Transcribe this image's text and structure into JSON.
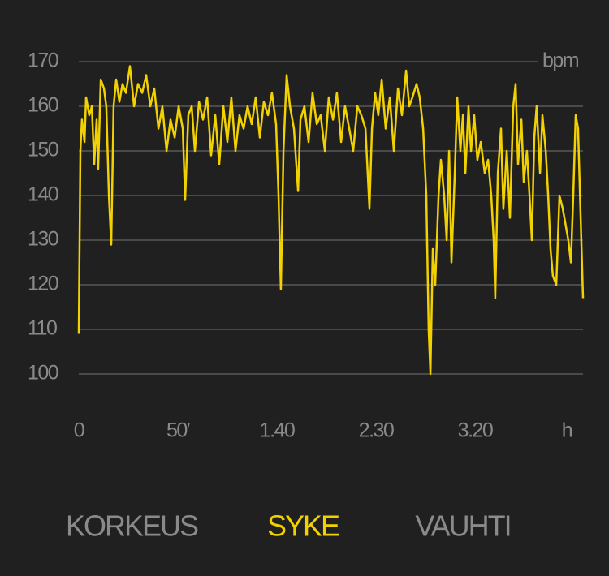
{
  "chart_data": {
    "type": "line",
    "y_unit": "bpm",
    "x_unit": "h",
    "xlim": [
      0,
      254.5
    ],
    "ylim": [
      100,
      170
    ],
    "yticks": [
      100,
      110,
      120,
      130,
      140,
      150,
      160,
      170
    ],
    "xticks": [
      0,
      {
        "value": 50,
        "label": "50′"
      },
      {
        "value": 100,
        "label": "1.40"
      },
      {
        "value": 150,
        "label": "2.30"
      },
      {
        "value": 200,
        "label": "3.20"
      }
    ],
    "grid": true,
    "series": [
      {
        "color": "#f2d100",
        "x": [
          0,
          0.8,
          1.6,
          2.9,
          3.7,
          5.3,
          6.6,
          7.8,
          9.0,
          9.8,
          11.1,
          12.7,
          13.9,
          15.2,
          16.4,
          17.6,
          18.9,
          20.5,
          22.1,
          23.8,
          25.8,
          27.9,
          29.9,
          32.0,
          34.0,
          36.1,
          38.1,
          40.2,
          42.2,
          44.3,
          46.3,
          48.4,
          50.4,
          52.5,
          53.7,
          55.3,
          57.0,
          58.6,
          60.7,
          62.7,
          64.8,
          66.8,
          68.9,
          70.9,
          73.0,
          75.0,
          77.0,
          79.1,
          81.1,
          83.2,
          85.2,
          87.3,
          89.3,
          91.4,
          93.4,
          95.5,
          97.5,
          99.6,
          100.8,
          102.0,
          103.3,
          104.9,
          106.6,
          108.6,
          110.7,
          111.9,
          113.9,
          116.0,
          118.0,
          120.1,
          122.1,
          124.2,
          126.2,
          128.3,
          130.3,
          132.4,
          134.4,
          136.5,
          138.5,
          140.6,
          142.6,
          144.7,
          146.7,
          148.0,
          149.6,
          151.2,
          152.9,
          154.9,
          157.0,
          159.0,
          161.1,
          163.1,
          165.2,
          166.8,
          168.4,
          170.5,
          172.1,
          173.8,
          175.4,
          176.6,
          177.5,
          178.7,
          179.9,
          181.6,
          182.8,
          184.4,
          185.7,
          186.9,
          188.1,
          189.8,
          191.0,
          192.6,
          193.9,
          195.1,
          196.7,
          198.0,
          199.6,
          201.2,
          202.9,
          204.9,
          206.6,
          208.2,
          209.4,
          210.2,
          211.5,
          213.1,
          214.3,
          216.0,
          217.6,
          219.3,
          220.5,
          221.7,
          223.4,
          224.6,
          226.2,
          227.5,
          228.7,
          229.9,
          231.1,
          232.8,
          234.0,
          235.7,
          236.9,
          238.1,
          239.3,
          241.0,
          242.6,
          244.3,
          245.9,
          247.1,
          248.4,
          249.6,
          250.8,
          252.0,
          253.3,
          254.5
        ],
        "values": [
          109,
          150,
          157,
          152,
          162,
          158,
          160,
          147,
          157,
          146,
          166,
          164,
          160,
          140,
          129,
          160,
          166,
          161,
          165,
          163,
          169,
          160,
          165,
          163,
          167,
          160,
          164,
          155,
          160,
          150,
          157,
          153,
          160,
          155,
          139,
          158,
          160,
          150,
          161,
          157,
          162,
          149,
          158,
          147,
          160,
          152,
          162,
          150,
          158,
          155,
          160,
          156,
          162,
          153,
          161,
          158,
          163,
          156,
          140,
          119,
          150,
          167,
          160,
          155,
          141,
          157,
          160,
          152,
          163,
          156,
          158,
          150,
          162,
          157,
          163,
          152,
          160,
          155,
          150,
          160,
          158,
          155,
          137,
          155,
          163,
          158,
          166,
          155,
          162,
          150,
          164,
          158,
          168,
          160,
          162,
          165,
          162,
          155,
          140,
          110,
          100,
          128,
          120,
          140,
          148,
          140,
          130,
          150,
          125,
          145,
          162,
          150,
          158,
          145,
          160,
          150,
          158,
          148,
          152,
          145,
          148,
          140,
          130,
          117,
          145,
          155,
          137,
          150,
          135,
          160,
          165,
          147,
          157,
          143,
          150,
          140,
          130,
          153,
          160,
          145,
          158,
          150,
          140,
          128,
          122,
          120,
          140,
          137,
          133,
          130,
          125,
          140,
          158,
          155,
          135,
          117
        ]
      }
    ]
  },
  "tabs": [
    {
      "label": "KORKEUS"
    },
    {
      "label": "SYKE",
      "active": true
    },
    {
      "label": "VAUHTI"
    }
  ]
}
